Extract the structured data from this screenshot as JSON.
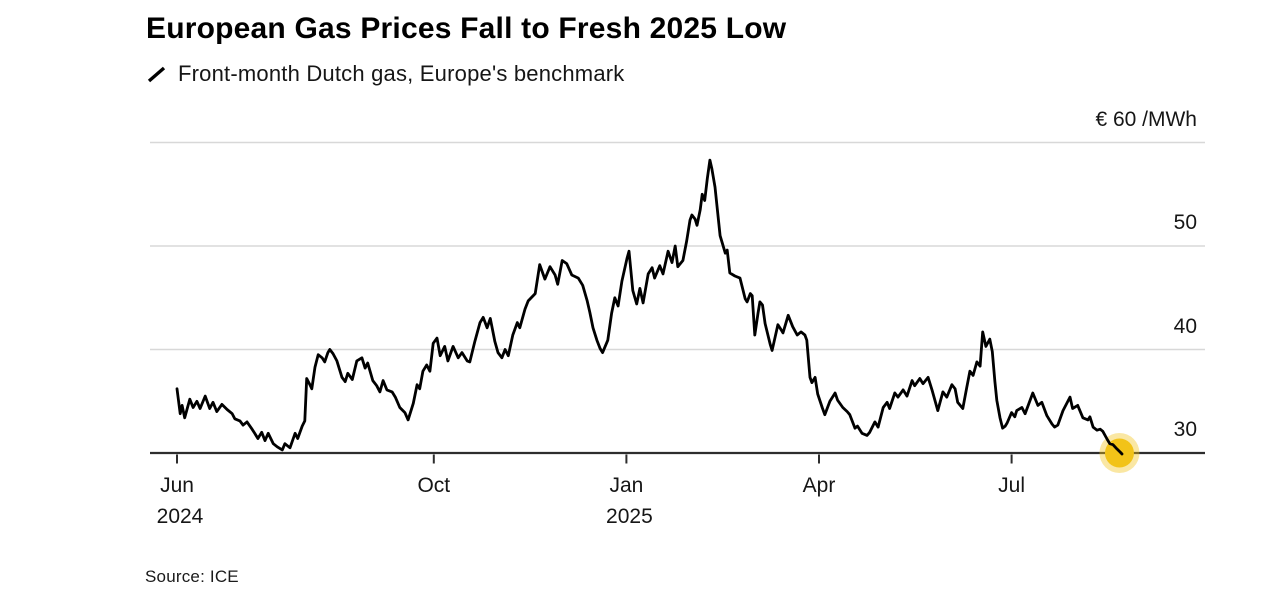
{
  "source": {
    "label": "Source: ICE"
  },
  "colors": {
    "line": "#000000",
    "grid": "#D8D8D8",
    "axis": "#2D2D2D",
    "tick": "#2D2D2D",
    "marker": "#F2C318",
    "background": "#FFFFFF",
    "text": "#161616"
  },
  "chart_data": {
    "type": "line",
    "title": "European Gas Prices Fall to Fresh 2025 Low",
    "subtitle": "Front-month Dutch gas, Europe's benchmark",
    "legend_icon": "line-swatch",
    "unit_label": "€ 60 /MWh",
    "y_unit": "€/MWh",
    "x_unit": "months since Jun 2024",
    "ylim": [
      28,
      61
    ],
    "grid": "horizontal",
    "legend_position": "none",
    "y_gridlines": [
      {
        "value": 60,
        "label": "€ 60 /MWh"
      },
      {
        "value": 50,
        "label": "50"
      },
      {
        "value": 40,
        "label": "40"
      },
      {
        "value": 30,
        "label": "30"
      }
    ],
    "x_ticks": [
      {
        "t": 0,
        "label": "Jun",
        "sublabel": "2024"
      },
      {
        "t": 4,
        "label": "Oct"
      },
      {
        "t": 7,
        "label": "Jan",
        "sublabel": "2025"
      },
      {
        "t": 10,
        "label": "Apr"
      },
      {
        "t": 13,
        "label": "Jul"
      }
    ],
    "series": [
      {
        "name": "Front-month Dutch TTF gas price",
        "color": "#000000",
        "points": [
          [
            0,
            36.2
          ],
          [
            0.05,
            33.8
          ],
          [
            0.08,
            34.6
          ],
          [
            0.12,
            33.4
          ],
          [
            0.2,
            35.2
          ],
          [
            0.25,
            34.4
          ],
          [
            0.31,
            35.0
          ],
          [
            0.36,
            34.3
          ],
          [
            0.44,
            35.5
          ],
          [
            0.51,
            34.3
          ],
          [
            0.56,
            34.9
          ],
          [
            0.62,
            34.0
          ],
          [
            0.7,
            34.7
          ],
          [
            0.78,
            34.2
          ],
          [
            0.86,
            33.8
          ],
          [
            0.9,
            33.3
          ],
          [
            0.98,
            33.1
          ],
          [
            1.03,
            32.7
          ],
          [
            1.09,
            33.0
          ],
          [
            1.17,
            32.3
          ],
          [
            1.21,
            31.9
          ],
          [
            1.26,
            31.4
          ],
          [
            1.32,
            32.0
          ],
          [
            1.37,
            31.2
          ],
          [
            1.42,
            31.9
          ],
          [
            1.5,
            30.9
          ],
          [
            1.56,
            30.6
          ],
          [
            1.64,
            30.3
          ],
          [
            1.68,
            30.9
          ],
          [
            1.76,
            30.5
          ],
          [
            1.84,
            31.9
          ],
          [
            1.88,
            31.4
          ],
          [
            1.95,
            32.6
          ],
          [
            1.99,
            33.1
          ],
          [
            2.02,
            37.2
          ],
          [
            2.07,
            36.6
          ],
          [
            2.1,
            36.2
          ],
          [
            2.15,
            38.3
          ],
          [
            2.2,
            39.5
          ],
          [
            2.26,
            39.2
          ],
          [
            2.3,
            38.8
          ],
          [
            2.35,
            39.7
          ],
          [
            2.38,
            40.0
          ],
          [
            2.43,
            39.6
          ],
          [
            2.49,
            38.9
          ],
          [
            2.57,
            37.3
          ],
          [
            2.62,
            36.9
          ],
          [
            2.66,
            37.7
          ],
          [
            2.73,
            37.1
          ],
          [
            2.8,
            38.9
          ],
          [
            2.88,
            39.2
          ],
          [
            2.93,
            38.2
          ],
          [
            2.97,
            38.7
          ],
          [
            3.05,
            37.0
          ],
          [
            3.11,
            36.5
          ],
          [
            3.16,
            35.9
          ],
          [
            3.21,
            37.0
          ],
          [
            3.27,
            36.1
          ],
          [
            3.35,
            35.9
          ],
          [
            3.4,
            35.4
          ],
          [
            3.47,
            34.4
          ],
          [
            3.55,
            33.9
          ],
          [
            3.6,
            33.2
          ],
          [
            3.68,
            34.8
          ],
          [
            3.74,
            36.6
          ],
          [
            3.78,
            36.2
          ],
          [
            3.83,
            37.9
          ],
          [
            3.89,
            38.5
          ],
          [
            3.94,
            37.9
          ],
          [
            3.99,
            40.6
          ],
          [
            4.05,
            41.1
          ],
          [
            4.1,
            39.4
          ],
          [
            4.17,
            40.3
          ],
          [
            4.22,
            38.9
          ],
          [
            4.3,
            40.3
          ],
          [
            4.38,
            39.2
          ],
          [
            4.44,
            39.7
          ],
          [
            4.52,
            38.9
          ],
          [
            4.56,
            38.8
          ],
          [
            4.64,
            40.8
          ],
          [
            4.72,
            42.6
          ],
          [
            4.77,
            43.1
          ],
          [
            4.83,
            42.1
          ],
          [
            4.88,
            43.0
          ],
          [
            4.95,
            40.8
          ],
          [
            5.0,
            39.7
          ],
          [
            5.06,
            39.2
          ],
          [
            5.11,
            40.0
          ],
          [
            5.16,
            39.4
          ],
          [
            5.23,
            41.4
          ],
          [
            5.3,
            42.6
          ],
          [
            5.34,
            42.1
          ],
          [
            5.42,
            43.9
          ],
          [
            5.47,
            44.7
          ],
          [
            5.58,
            45.4
          ],
          [
            5.65,
            48.2
          ],
          [
            5.73,
            46.8
          ],
          [
            5.81,
            48.0
          ],
          [
            5.89,
            47.2
          ],
          [
            5.93,
            46.3
          ],
          [
            6.0,
            48.6
          ],
          [
            6.07,
            48.3
          ],
          [
            6.15,
            47.2
          ],
          [
            6.25,
            46.9
          ],
          [
            6.32,
            46.2
          ],
          [
            6.39,
            44.7
          ],
          [
            6.43,
            43.6
          ],
          [
            6.48,
            42.1
          ],
          [
            6.54,
            40.9
          ],
          [
            6.59,
            40.1
          ],
          [
            6.63,
            39.7
          ],
          [
            6.71,
            40.9
          ],
          [
            6.77,
            43.5
          ],
          [
            6.82,
            45.0
          ],
          [
            6.87,
            44.2
          ],
          [
            6.93,
            46.6
          ],
          [
            7.01,
            48.8
          ],
          [
            7.04,
            49.5
          ],
          [
            7.1,
            45.7
          ],
          [
            7.16,
            44.4
          ],
          [
            7.21,
            45.9
          ],
          [
            7.26,
            44.5
          ],
          [
            7.34,
            47.3
          ],
          [
            7.4,
            47.9
          ],
          [
            7.44,
            46.9
          ],
          [
            7.52,
            48.1
          ],
          [
            7.57,
            47.3
          ],
          [
            7.65,
            49.5
          ],
          [
            7.71,
            48.4
          ],
          [
            7.76,
            50.0
          ],
          [
            7.8,
            48.0
          ],
          [
            7.88,
            48.6
          ],
          [
            7.94,
            50.5
          ],
          [
            7.99,
            52.5
          ],
          [
            8.02,
            53.0
          ],
          [
            8.07,
            52.6
          ],
          [
            8.1,
            52.0
          ],
          [
            8.15,
            53.5
          ],
          [
            8.18,
            55.0
          ],
          [
            8.22,
            54.4
          ],
          [
            8.26,
            56.5
          ],
          [
            8.3,
            58.3
          ],
          [
            8.33,
            57.5
          ],
          [
            8.38,
            55.7
          ],
          [
            8.46,
            51.0
          ],
          [
            8.54,
            49.3
          ],
          [
            8.57,
            49.6
          ],
          [
            8.61,
            47.4
          ],
          [
            8.69,
            47.1
          ],
          [
            8.77,
            46.9
          ],
          [
            8.85,
            44.9
          ],
          [
            8.88,
            44.6
          ],
          [
            8.93,
            45.4
          ],
          [
            8.96,
            45.2
          ],
          [
            9.0,
            41.4
          ],
          [
            9.05,
            43.5
          ],
          [
            9.08,
            44.6
          ],
          [
            9.12,
            44.3
          ],
          [
            9.16,
            42.5
          ],
          [
            9.24,
            40.5
          ],
          [
            9.27,
            39.9
          ],
          [
            9.36,
            42.4
          ],
          [
            9.4,
            42.0
          ],
          [
            9.44,
            41.6
          ],
          [
            9.52,
            43.3
          ],
          [
            9.59,
            42.2
          ],
          [
            9.66,
            41.4
          ],
          [
            9.72,
            41.7
          ],
          [
            9.78,
            41.4
          ],
          [
            9.81,
            40.9
          ],
          [
            9.86,
            37.3
          ],
          [
            9.89,
            36.8
          ],
          [
            9.94,
            37.3
          ],
          [
            9.98,
            35.7
          ],
          [
            10.05,
            34.4
          ],
          [
            10.09,
            33.7
          ],
          [
            10.17,
            35.0
          ],
          [
            10.25,
            35.8
          ],
          [
            10.29,
            35.1
          ],
          [
            10.37,
            34.4
          ],
          [
            10.44,
            34.0
          ],
          [
            10.48,
            33.7
          ],
          [
            10.56,
            32.4
          ],
          [
            10.6,
            32.6
          ],
          [
            10.67,
            31.9
          ],
          [
            10.75,
            31.7
          ],
          [
            10.79,
            32.0
          ],
          [
            10.87,
            33.0
          ],
          [
            10.92,
            32.5
          ],
          [
            11.0,
            34.4
          ],
          [
            11.06,
            34.9
          ],
          [
            11.1,
            34.3
          ],
          [
            11.18,
            35.8
          ],
          [
            11.23,
            35.4
          ],
          [
            11.31,
            36.1
          ],
          [
            11.37,
            35.5
          ],
          [
            11.45,
            37.0
          ],
          [
            11.49,
            36.5
          ],
          [
            11.57,
            37.2
          ],
          [
            11.62,
            36.7
          ],
          [
            11.7,
            37.3
          ],
          [
            11.76,
            36.1
          ],
          [
            11.85,
            34.1
          ],
          [
            11.93,
            35.9
          ],
          [
            11.99,
            35.4
          ],
          [
            12.07,
            36.6
          ],
          [
            12.12,
            36.2
          ],
          [
            12.16,
            34.9
          ],
          [
            12.24,
            34.3
          ],
          [
            12.3,
            36.3
          ],
          [
            12.35,
            37.9
          ],
          [
            12.4,
            37.5
          ],
          [
            12.46,
            38.8
          ],
          [
            12.51,
            38.4
          ],
          [
            12.55,
            41.7
          ],
          [
            12.6,
            40.3
          ],
          [
            12.66,
            41.0
          ],
          [
            12.7,
            39.8
          ],
          [
            12.74,
            36.9
          ],
          [
            12.77,
            35.1
          ],
          [
            12.82,
            33.4
          ],
          [
            12.86,
            32.4
          ],
          [
            12.9,
            32.6
          ],
          [
            12.93,
            32.9
          ],
          [
            13.0,
            33.9
          ],
          [
            13.05,
            33.5
          ],
          [
            13.08,
            34.1
          ],
          [
            13.16,
            34.4
          ],
          [
            13.21,
            33.8
          ],
          [
            13.33,
            35.8
          ],
          [
            13.41,
            34.6
          ],
          [
            13.47,
            34.9
          ],
          [
            13.55,
            33.6
          ],
          [
            13.63,
            32.8
          ],
          [
            13.67,
            32.5
          ],
          [
            13.72,
            32.7
          ],
          [
            13.8,
            34.1
          ],
          [
            13.91,
            35.4
          ],
          [
            13.95,
            34.3
          ],
          [
            14.03,
            34.6
          ],
          [
            14.11,
            33.4
          ],
          [
            14.19,
            33.2
          ],
          [
            14.22,
            33.5
          ],
          [
            14.27,
            32.5
          ],
          [
            14.33,
            32.2
          ],
          [
            14.38,
            32.3
          ],
          [
            14.42,
            32.1
          ],
          [
            14.49,
            31.3
          ],
          [
            14.53,
            30.9
          ],
          [
            14.58,
            30.8
          ],
          [
            14.64,
            30.4
          ],
          [
            14.69,
            30.1
          ],
          [
            14.72,
            29.9
          ]
        ]
      }
    ],
    "end_marker": {
      "t": 14.68,
      "value": 30.0,
      "color": "#F2C318",
      "note": "latest value dot"
    }
  }
}
